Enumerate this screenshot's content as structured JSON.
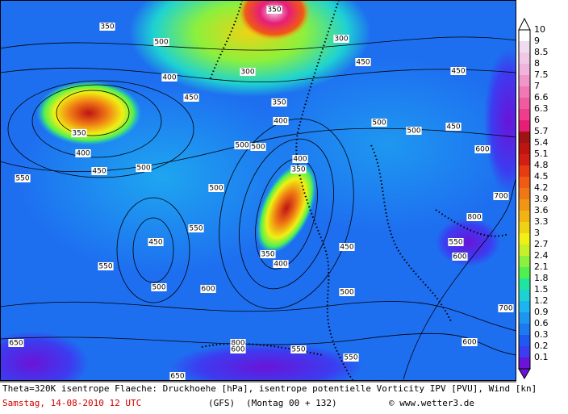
{
  "legend": {
    "levels": [
      "10",
      "9",
      "8.5",
      "8",
      "7.5",
      "7",
      "6.6",
      "6.3",
      "6",
      "5.7",
      "5.4",
      "5.1",
      "4.8",
      "4.5",
      "4.2",
      "3.9",
      "3.6",
      "3.3",
      "3",
      "2.7",
      "2.4",
      "2.1",
      "1.8",
      "1.5",
      "1.2",
      "0.9",
      "0.6",
      "0.3",
      "0.2",
      "0.1"
    ],
    "colors": [
      "#ffffff",
      "#f0dcf0",
      "#f0c8e6",
      "#f0b4dc",
      "#f096c8",
      "#f078b4",
      "#f05aa0",
      "#f03c8c",
      "#e61e78",
      "#a01414",
      "#be1414",
      "#d21e14",
      "#e63c14",
      "#f05a14",
      "#f07814",
      "#f09614",
      "#f0b414",
      "#f0d214",
      "#f0f014",
      "#c8f028",
      "#8cf03c",
      "#50f050",
      "#1ee6a0",
      "#1ed2d2",
      "#1eb4f0",
      "#1e96f0",
      "#1e78f0",
      "#1e5af0",
      "#3c3cf0",
      "#6a14d8"
    ]
  },
  "contour_labels": [
    "350",
    "500",
    "300",
    "350",
    "400",
    "450",
    "300",
    "350",
    "400",
    "450",
    "450",
    "350",
    "400",
    "450",
    "500",
    "500",
    "500",
    "500",
    "450",
    "500",
    "400",
    "350",
    "350",
    "400",
    "550",
    "450",
    "500",
    "450",
    "600",
    "500",
    "500",
    "550",
    "550",
    "650",
    "800",
    "600",
    "550",
    "550",
    "600",
    "600",
    "700",
    "700",
    "800",
    "650",
    "550",
    "600"
  ],
  "caption": {
    "line1": "Theta=320K isentrope Flaeche: Druckhoehe [hPa], isentrope potentielle Vorticity IPV [PVU], Wind [kn]",
    "date": "Samstag, 14-08-2010  12 UTC",
    "model": "(GFS)",
    "run": "(Montag 00 + 132)",
    "copyright": "© www.wetter3.de"
  }
}
